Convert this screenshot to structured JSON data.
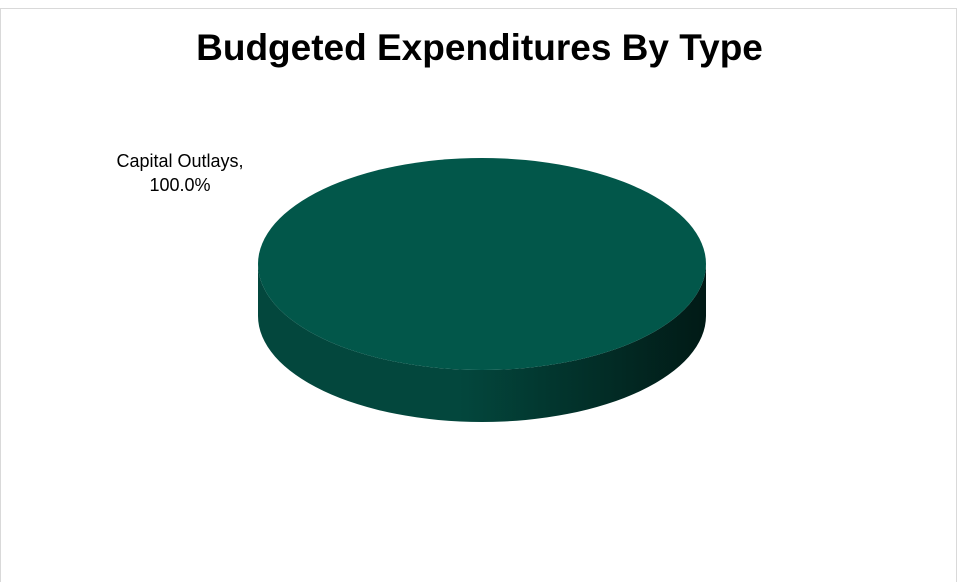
{
  "chart_data": {
    "type": "pie",
    "title": "Budgeted Expenditures By Type",
    "categories": [
      "Capital Outlays"
    ],
    "values": [
      100.0
    ],
    "data_labels": [
      {
        "category": "Capital Outlays",
        "percent": "100.0%"
      }
    ],
    "style": "3d",
    "legend": "none"
  },
  "colors": {
    "slice_top": "#02574a",
    "slice_side_light": "#03473d",
    "slice_side_dark": "#011a16",
    "frame_border": "#d9d9d9"
  }
}
